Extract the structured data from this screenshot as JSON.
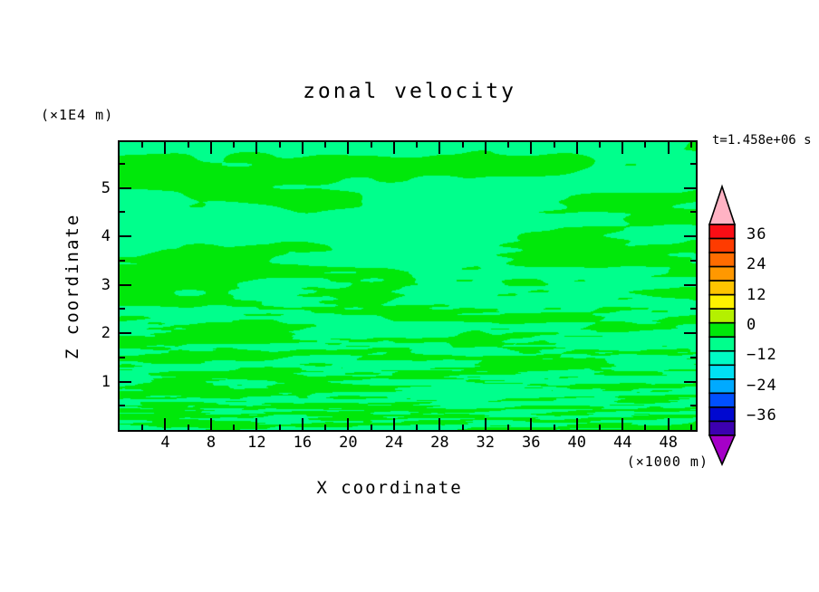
{
  "title": "zonal velocity",
  "time_label": "t=1.458e+06 s",
  "x_axis": {
    "title": "X coordinate",
    "unit_label": "(×1000 m)",
    "major_tick_labels": [
      "4",
      "8",
      "12",
      "16",
      "20",
      "24",
      "28",
      "32",
      "36",
      "40",
      "44",
      "48"
    ],
    "major_tick_values": [
      4,
      8,
      12,
      16,
      20,
      24,
      28,
      32,
      36,
      40,
      44,
      48
    ],
    "minor_tick_values": [
      2,
      6,
      10,
      14,
      18,
      22,
      26,
      30,
      34,
      38,
      42,
      46,
      50
    ],
    "min": 0,
    "max": 50.4
  },
  "y_axis": {
    "title": "Z coordinate",
    "unit_label": "(×1E4 m)",
    "major_tick_labels": [
      "1",
      "2",
      "3",
      "4",
      "5"
    ],
    "major_tick_values": [
      1,
      2,
      3,
      4,
      5
    ],
    "minor_tick_values": [
      0.5,
      1.5,
      2.5,
      3.5,
      4.5,
      5.5
    ],
    "min": 0,
    "max": 5.95
  },
  "colorbar": {
    "labels": [
      "36",
      "24",
      "12",
      "0",
      "−12",
      "−24",
      "−36"
    ],
    "block_colors": [
      "#FA0D15",
      "#FE3B00",
      "#FF6C00",
      "#FF9800",
      "#FFC400",
      "#FFF200",
      "#B4F000",
      "#00E80A",
      "#00FF8C",
      "#00FBC4",
      "#00E0F4",
      "#00AAFF",
      "#0050FF",
      "#0008D0",
      "#3C00B0"
    ],
    "arrow_top_color": "#FFB3C4",
    "arrow_bottom_color": "#A500C8",
    "outline_color": "#000000"
  },
  "field": {
    "base_color": "#00FF8C",
    "patch_color": "#00E80A"
  },
  "chart_data": {
    "type": "heatmap",
    "title": "zonal velocity",
    "xlabel": "X coordinate",
    "x_unit": "×1000 m",
    "x_range": [
      0,
      50.4
    ],
    "ylabel": "Z coordinate",
    "y_unit": "×1E4 m",
    "y_range": [
      0,
      5.95
    ],
    "time_annotation": "t=1.458e+06 s",
    "colorbar_tick_values": [
      36,
      24,
      12,
      0,
      -12,
      -24,
      -36
    ],
    "contour_interval": 6,
    "colorbar_range": [
      -45,
      45
    ],
    "field_range_visible": [
      -6,
      6
    ],
    "levels_visible": [
      {
        "range": [
          0,
          6
        ],
        "color": "#00E80A"
      },
      {
        "range": [
          -6,
          0
        ],
        "color": "#00FF8C"
      }
    ],
    "pattern": "horizontally elongated turbulent velocity layers near 0 m/s; fine-scale streaks below z≈2×1E4 m, broader smooth layers above z≈3×1E4 m",
    "legend_position": "right colorbar with overflow arrows (pink > 42, purple < -42)",
    "grid": false
  }
}
